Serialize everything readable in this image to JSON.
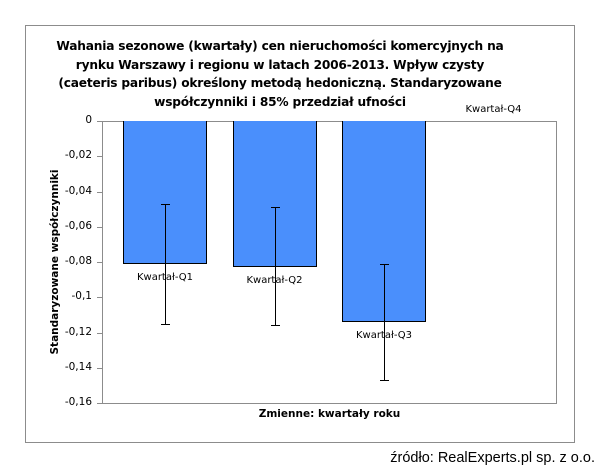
{
  "chart_data": {
    "type": "bar",
    "title": "Wahania sezonowe (kwartały) cen nieruchomości komercyjnych na rynku Warszawy i regionu w latach 2006-2013. Wpływ czysty (caeteris paribus) określony metodą hedoniczną. Standaryzowane współczynniki i 85% przedział ufności",
    "title_lines": [
      "Wahania sezonowe (kwartały) cen nieruchomości komercyjnych na",
      "rynku Warszawy i regionu w latach 2006-2013.  Wpływ czysty",
      "(caeteris paribus) określony metodą hedoniczną. Standaryzowane",
      "współczynniki i 85% przedział ufności"
    ],
    "xlabel": "Zmienne: kwartały roku",
    "ylabel": "Standaryzowane współczynniki",
    "categories": [
      "Kwartał-Q1",
      "Kwartał-Q2",
      "Kwartał-Q3",
      "Kwartał-Q4"
    ],
    "values": [
      -0.081,
      -0.083,
      -0.114,
      0
    ],
    "error_bars": [
      {
        "upper": -0.047,
        "lower": -0.115
      },
      {
        "upper": -0.049,
        "lower": -0.116
      },
      {
        "upper": -0.081,
        "lower": -0.147
      },
      null
    ],
    "ylim": [
      -0.16,
      0
    ],
    "yticks": [
      "0",
      "-0,02",
      "-0,04",
      "-0,06",
      "-0,08",
      "-0,1",
      "-0,12",
      "-0,14",
      "-0,16"
    ],
    "grid": false,
    "legend": null,
    "bar_color": "#4a8ffc"
  },
  "source": "źródło: RealExperts.pl sp. z o.o."
}
